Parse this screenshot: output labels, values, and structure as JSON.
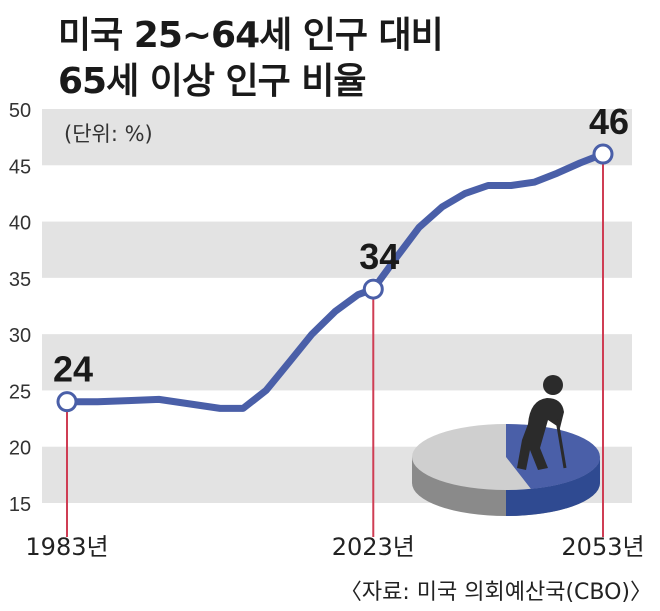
{
  "title_line1": "미국 25~64세 인구 대비",
  "title_line2": "65세 이상 인구 비율",
  "unit_label": "(단위: %)",
  "source": "〈자료: 미국 의회예산국(CBO)〉",
  "colors": {
    "line": "#4a5fa8",
    "marker_line": "#cf3d54",
    "band": "#e3e3e3",
    "pie_dark": "#4a5fa8",
    "pie_light": "#cfcfcf",
    "figure": "#2b2b2b"
  },
  "chart_data": {
    "type": "line",
    "title": "미국 25~64세 인구 대비 65세 이상 인구 비율",
    "ylabel": "(단위: %)",
    "ylim": [
      15,
      50
    ],
    "yticks": [
      15,
      20,
      25,
      30,
      35,
      40,
      45,
      50
    ],
    "xlim": [
      1983,
      2053
    ],
    "grid": "alternating horizontal bands",
    "series": [
      {
        "x": [
          1983,
          1987,
          1991,
          1995,
          1999,
          2003,
          2006,
          2009,
          2012,
          2015,
          2018,
          2021,
          2023,
          2026,
          2029,
          2032,
          2035,
          2038,
          2041,
          2044,
          2047,
          2050,
          2053
        ],
        "values": [
          24,
          24,
          24.1,
          24.2,
          23.8,
          23.4,
          23.4,
          25,
          27.5,
          30,
          32,
          33.5,
          34,
          36.8,
          39.5,
          41.3,
          42.5,
          43.2,
          43.2,
          43.5,
          44.3,
          45.2,
          46
        ]
      }
    ],
    "highlights": [
      {
        "x": 1983,
        "value": 24,
        "label": "24",
        "xlabel": "1983년"
      },
      {
        "x": 2023,
        "value": 34,
        "label": "34",
        "xlabel": "2023년"
      },
      {
        "x": 2053,
        "value": 46,
        "label": "46",
        "xlabel": "2053년"
      }
    ]
  }
}
